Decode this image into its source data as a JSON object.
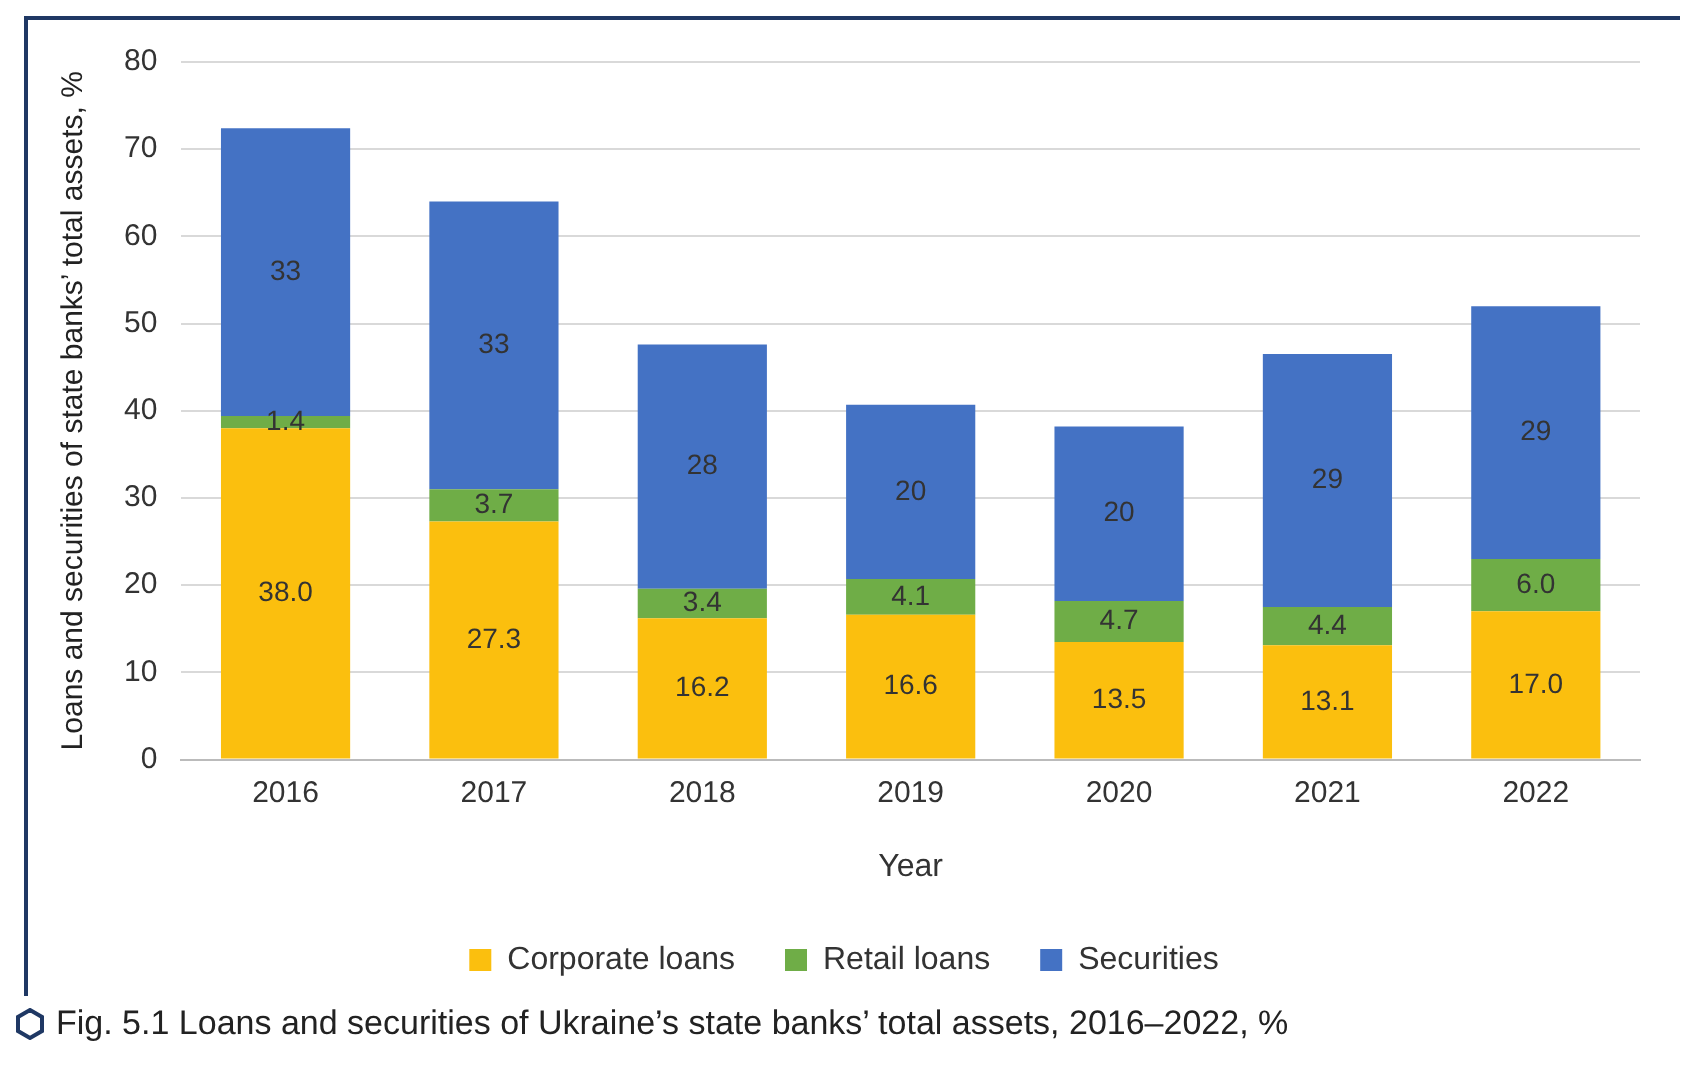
{
  "chart_data": {
    "type": "bar",
    "stacked": true,
    "xlabel": "Year",
    "ylabel": "Loans and securities of state banks’ total assets, %",
    "categories": [
      "2016",
      "2017",
      "2018",
      "2019",
      "2020",
      "2021",
      "2022"
    ],
    "series": [
      {
        "name": "Corporate loans",
        "color": "#fbbf0e",
        "values": [
          38.0,
          27.3,
          16.2,
          16.6,
          13.5,
          13.1,
          17.0
        ],
        "value_labels": [
          "38.0",
          "27.3",
          "16.2",
          "16.6",
          "13.5",
          "13.1",
          "17.0"
        ]
      },
      {
        "name": "Retail loans",
        "color": "#6fad47",
        "values": [
          1.4,
          3.7,
          3.4,
          4.1,
          4.7,
          4.4,
          6.0
        ],
        "value_labels": [
          "1.4",
          "3.7",
          "3.4",
          "4.1",
          "4.7",
          "4.4",
          "6.0"
        ]
      },
      {
        "name": "Securities",
        "color": "#4472c4",
        "values": [
          33,
          33,
          28,
          20,
          20,
          29,
          29
        ],
        "value_labels": [
          "33",
          "33",
          "28",
          "20",
          "20",
          "29",
          "29"
        ]
      }
    ],
    "ylim": [
      0,
      80
    ],
    "yticks": [
      0,
      10,
      20,
      30,
      40,
      50,
      60,
      70,
      80
    ],
    "grid": "y",
    "legend": "bottom",
    "annotations": [
      "Fig. 5.1 Loans and securities of Ukraine’s state banks’ total assets, 2016–2022, %"
    ]
  }
}
